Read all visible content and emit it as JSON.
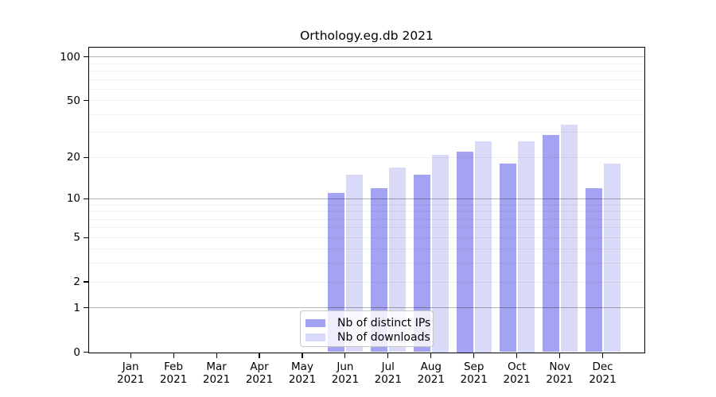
{
  "chart_data": {
    "type": "bar",
    "title": "Orthology.eg.db 2021",
    "x_months": [
      "Jan",
      "Feb",
      "Mar",
      "Apr",
      "May",
      "Jun",
      "Jul",
      "Aug",
      "Sep",
      "Oct",
      "Nov",
      "Dec"
    ],
    "x_year": "2021",
    "series": [
      {
        "name": "Nb of distinct IPs",
        "color": "#a3a3f1",
        "values": [
          0,
          0,
          0,
          0,
          0,
          11,
          12,
          15,
          22,
          18,
          29,
          12
        ]
      },
      {
        "name": "Nb of downloads",
        "color": "#d9d9f8",
        "values": [
          0,
          0,
          0,
          0,
          0,
          15,
          17,
          21,
          26,
          26,
          34,
          18
        ]
      }
    ],
    "scale": "log1p",
    "ylim": [
      0,
      114
    ],
    "y_ticks": [
      0,
      1,
      2,
      5,
      10,
      20,
      50,
      100
    ],
    "major_gridlines": [
      1,
      10,
      100
    ],
    "minor_gridlines": [
      2,
      3,
      4,
      5,
      6,
      7,
      8,
      9,
      20,
      30,
      40,
      50,
      60,
      70,
      80,
      90
    ],
    "grid": true,
    "legend_position": "inside-bottom-center"
  }
}
